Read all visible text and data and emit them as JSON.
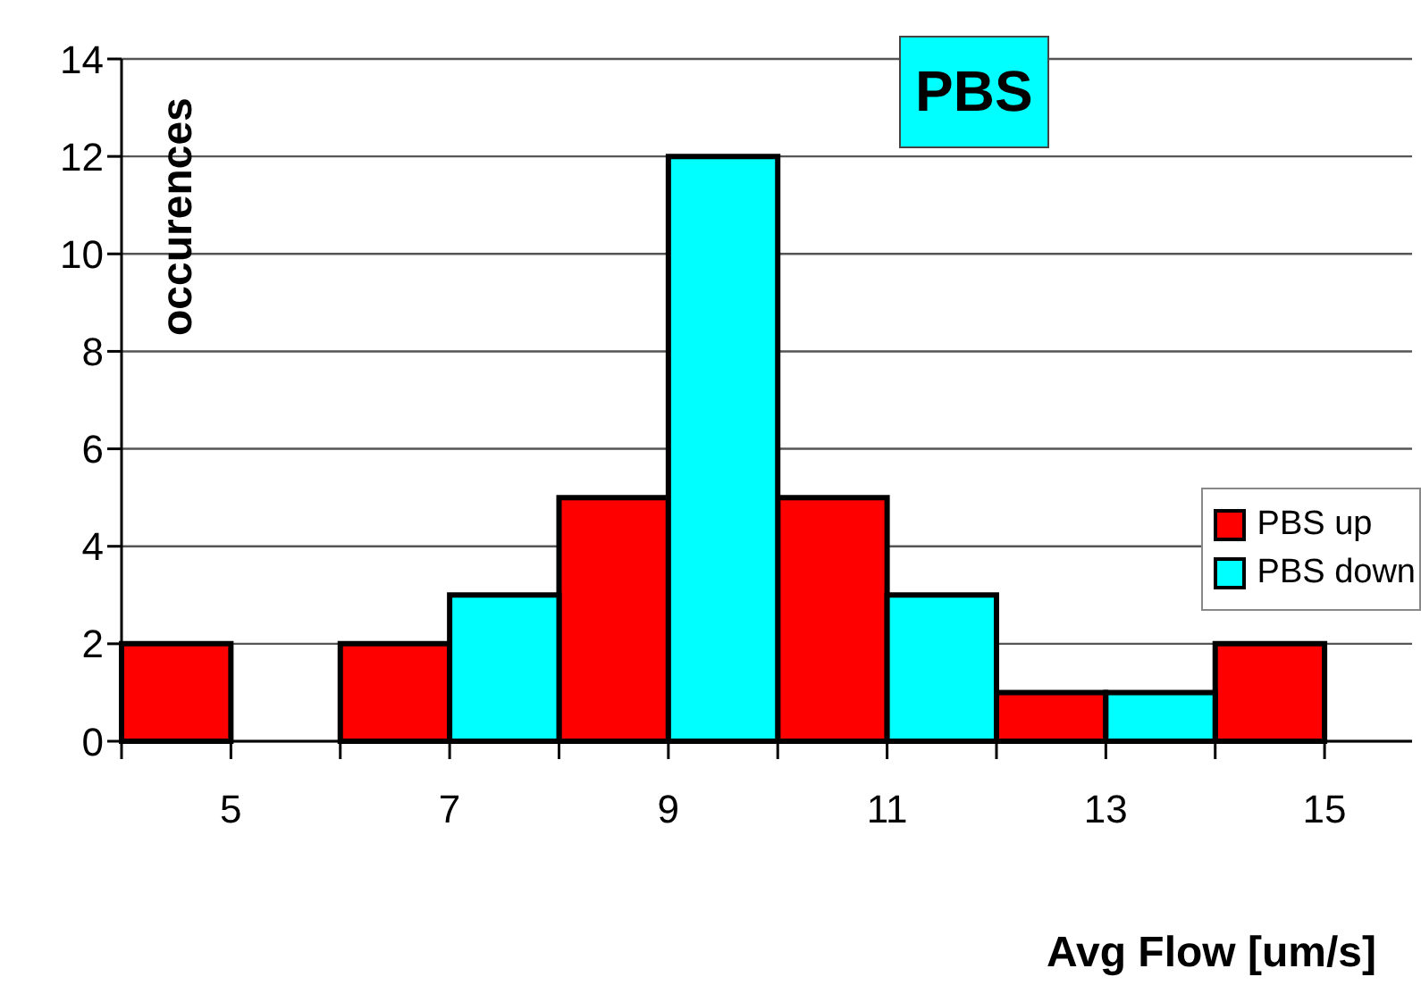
{
  "chart_data": {
    "type": "histogram",
    "title": "PBS",
    "xlabel": "Avg Flow [um/s]",
    "ylabel": "occurences",
    "bins": [
      4,
      5,
      6,
      7,
      8,
      9,
      10,
      11,
      12,
      13,
      14,
      15
    ],
    "series": [
      {
        "name": "PBS up",
        "color": "#ff0000",
        "values": [
          2,
          0,
          2,
          null,
          5,
          null,
          5,
          null,
          1,
          null,
          2
        ]
      },
      {
        "name": "PBS down",
        "color": "#00ffff",
        "values": [
          null,
          null,
          null,
          3,
          null,
          12,
          null,
          3,
          null,
          1,
          null
        ]
      }
    ],
    "xlim": [
      4,
      15.8
    ],
    "xticks": [
      {
        "value": 4,
        "label": null
      },
      5,
      {
        "value": 6,
        "label": null
      },
      7,
      {
        "value": 8,
        "label": null
      },
      9,
      {
        "value": 10,
        "label": null
      },
      11,
      {
        "value": 12,
        "label": null
      },
      13,
      {
        "value": 14,
        "label": null
      },
      15
    ],
    "ylim": [
      0,
      14
    ],
    "yticks": [
      0,
      2,
      4,
      6,
      8,
      10,
      12,
      14
    ],
    "grid": "y",
    "legend": "right"
  }
}
